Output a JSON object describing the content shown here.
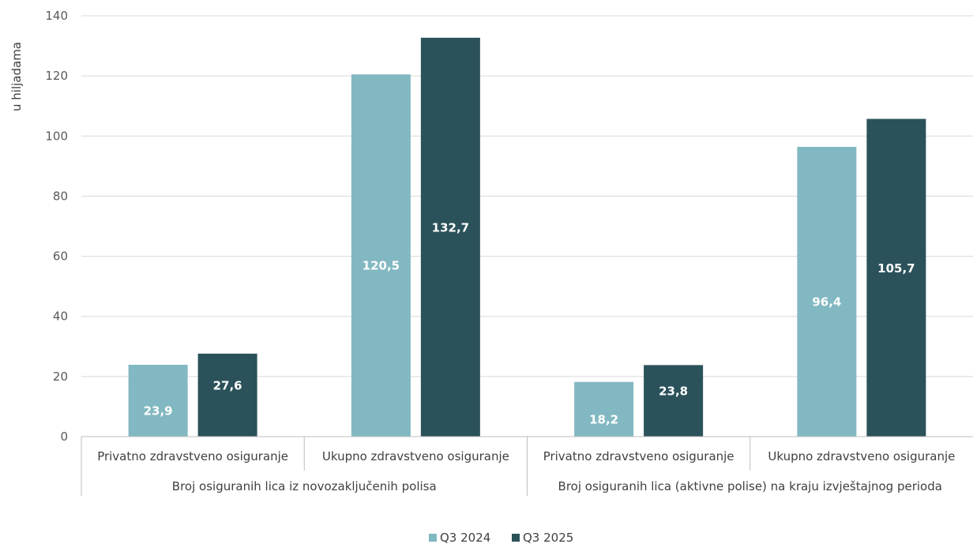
{
  "chart_data": {
    "type": "bar",
    "ylabel": "u hiljadama",
    "ylim": [
      0,
      140
    ],
    "yticks": [
      0,
      20,
      40,
      60,
      80,
      100,
      120,
      140
    ],
    "grid": true,
    "legend_position": "bottom",
    "groups": [
      {
        "label": "Broj osiguranih lica iz novozaključenih polisa",
        "categories": [
          "Privatno zdravstveno osiguranje",
          "Ukupno zdravstveno osiguranje"
        ]
      },
      {
        "label": "Broj osiguranih lica (aktivne polise) na kraju izvještajnog perioda",
        "categories": [
          "Privatno zdravstveno osiguranje",
          "Ukupno zdravstveno osiguranje"
        ]
      }
    ],
    "series": [
      {
        "name": "Q3 2024",
        "color": "#82b8c2",
        "values": [
          23.9,
          120.5,
          18.2,
          96.4
        ],
        "labels": [
          "23,9",
          "120,5",
          "18,2",
          "96,4"
        ]
      },
      {
        "name": "Q3 2025",
        "color": "#2b525a",
        "values": [
          27.6,
          132.7,
          23.8,
          105.7
        ],
        "labels": [
          "27,6",
          "132,7",
          "23,8",
          "105,7"
        ]
      }
    ]
  }
}
